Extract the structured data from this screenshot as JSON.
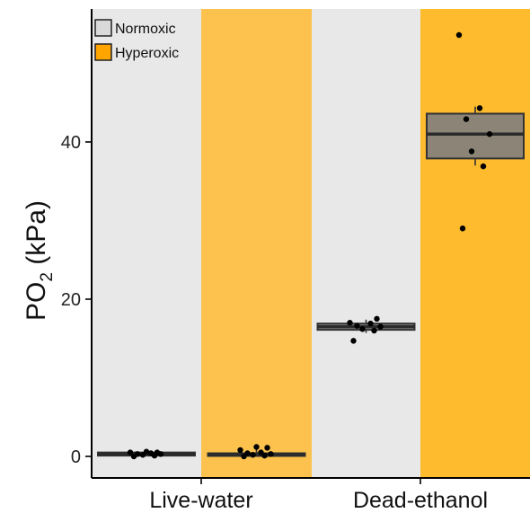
{
  "chart_data": {
    "type": "box",
    "categories": [
      "Live-water",
      "Dead-ethanol"
    ],
    "ylabel_main": "PO",
    "ylabel_sub": "2",
    "ylabel_unit": " (kPa)",
    "yticks": [
      0,
      20,
      40
    ],
    "ylim": [
      -3,
      57
    ],
    "legend": {
      "placement": "top-left",
      "entries": [
        {
          "name": "Normoxic",
          "color": "#d9d9d9"
        },
        {
          "name": "Hyperoxic",
          "color": "#ffa500"
        }
      ]
    },
    "colors": {
      "normoxic_band": "#e8e8e8",
      "hyperoxic_band_live": "#fcc24d",
      "hyperoxic_band_dead": "#fdbb2d",
      "box_fill": "#808080",
      "box_stroke": "#333333",
      "point": "#000000"
    },
    "groups": [
      {
        "category": "Live-water",
        "condition": "Normoxic",
        "box": {
          "q1": 0.1,
          "median": 0.3,
          "q3": 0.5,
          "whisker_low": 0.0,
          "whisker_high": 0.7
        },
        "points": [
          0.0,
          0.1,
          0.2,
          0.3,
          0.3,
          0.4,
          0.5,
          0.5,
          0.6
        ]
      },
      {
        "category": "Live-water",
        "condition": "Hyperoxic",
        "box": {
          "q1": 0.1,
          "median": 0.25,
          "q3": 0.4,
          "whisker_low": 0.0,
          "whisker_high": 1.2
        },
        "points": [
          0.0,
          0.1,
          0.2,
          0.3,
          0.4,
          0.5,
          0.8,
          1.1,
          1.2
        ]
      },
      {
        "category": "Dead-ethanol",
        "condition": "Normoxic",
        "box": {
          "q1": 16.1,
          "median": 16.5,
          "q3": 16.9,
          "whisker_low": 15.7,
          "whisker_high": 17.4
        },
        "points": [
          14.7,
          16.0,
          16.2,
          16.5,
          16.6,
          16.9,
          17.0,
          17.5
        ]
      },
      {
        "category": "Dead-ethanol",
        "condition": "Hyperoxic",
        "box": {
          "q1": 37.9,
          "median": 41.0,
          "q3": 43.6,
          "whisker_low": 37.0,
          "whisker_high": 44.5
        },
        "points": [
          29.0,
          36.9,
          38.8,
          41.0,
          42.9,
          44.3,
          53.6
        ]
      }
    ]
  }
}
